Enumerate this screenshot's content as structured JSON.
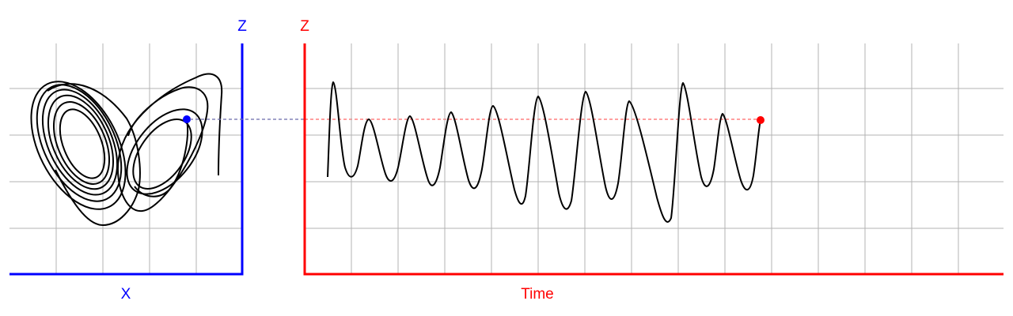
{
  "phase_plot": {
    "x_axis_label": "X",
    "z_axis_label": "Z",
    "axis_color": "#0000ff",
    "marker_color": "#0000ff",
    "grid_color": "#b3b3b3",
    "trajectory_color": "#000000"
  },
  "time_plot": {
    "x_axis_label": "Time",
    "z_axis_label": "Z",
    "axis_color": "#ff0000",
    "marker_color": "#ff0000",
    "grid_color": "#b3b3b3",
    "trace_color": "#000000"
  },
  "connector": {
    "style": "dashed",
    "color_left": "#6a6aaa",
    "color_right": "#ff6666"
  }
}
